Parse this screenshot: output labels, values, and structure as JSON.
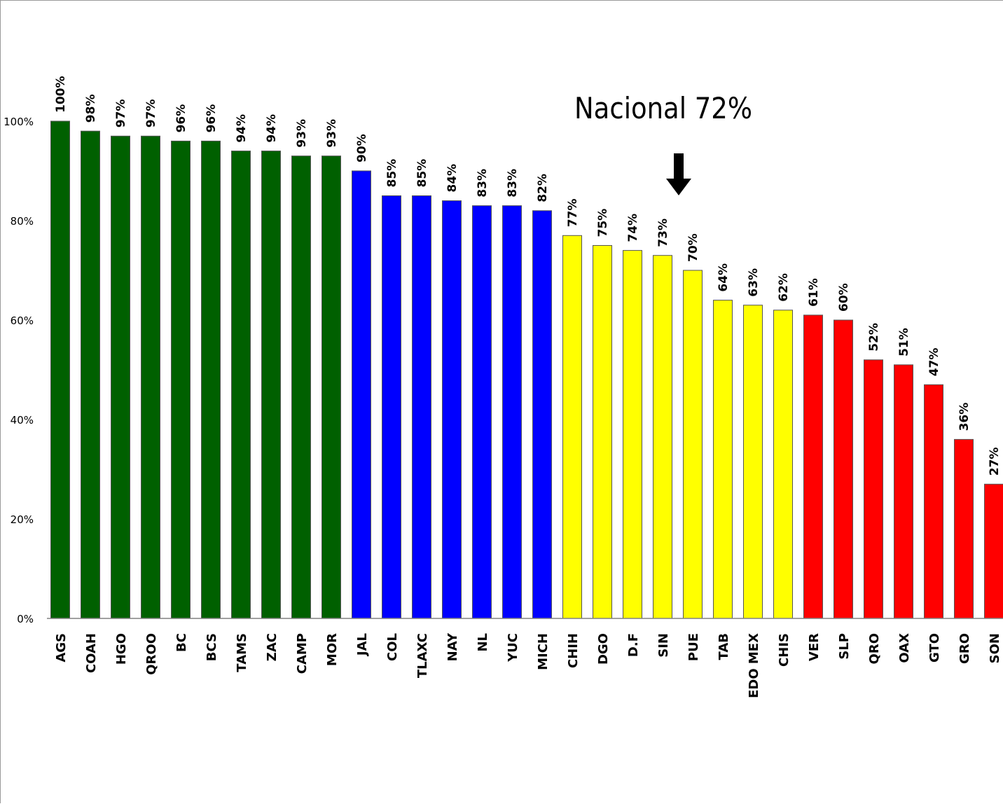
{
  "chart_data": {
    "type": "bar",
    "categories": [
      "AGS",
      "COAH",
      "HGO",
      "QROO",
      "BC",
      "BCS",
      "TAMS",
      "ZAC",
      "CAMP",
      "MOR",
      "JAL",
      "COL",
      "TLAXC",
      "NAY",
      "NL",
      "YUC",
      "MICH",
      "CHIH",
      "DGO",
      "D.F",
      "SIN",
      "PUE",
      "TAB",
      "EDO MEX",
      "CHIS",
      "VER",
      "SLP",
      "QRO",
      "OAX",
      "GTO",
      "GRO",
      "SON"
    ],
    "values": [
      100,
      98,
      97,
      97,
      96,
      96,
      94,
      94,
      93,
      93,
      90,
      85,
      85,
      84,
      83,
      83,
      82,
      77,
      75,
      74,
      73,
      70,
      64,
      63,
      62,
      61,
      60,
      52,
      51,
      47,
      36,
      27
    ],
    "data_labels": [
      "100%",
      "98%",
      "97%",
      "97%",
      "96%",
      "96%",
      "94%",
      "94%",
      "93%",
      "93%",
      "90%",
      "85%",
      "85%",
      "84%",
      "83%",
      "83%",
      "82%",
      "77%",
      "75%",
      "74%",
      "73%",
      "70%",
      "64%",
      "63%",
      "62%",
      "61%",
      "60%",
      "52%",
      "51%",
      "47%",
      "36%",
      "27%"
    ],
    "bar_colors": [
      "#006000",
      "#006000",
      "#006000",
      "#006000",
      "#006000",
      "#006000",
      "#006000",
      "#006000",
      "#006000",
      "#006000",
      "#0000ff",
      "#0000ff",
      "#0000ff",
      "#0000ff",
      "#0000ff",
      "#0000ff",
      "#0000ff",
      "#ffff00",
      "#ffff00",
      "#ffff00",
      "#ffff00",
      "#ffff00",
      "#ffff00",
      "#ffff00",
      "#ffff00",
      "#ff0000",
      "#ff0000",
      "#ff0000",
      "#ff0000",
      "#ff0000",
      "#ff0000",
      "#ff0000"
    ],
    "ylim": [
      0,
      100
    ],
    "yticks": [
      0,
      20,
      40,
      60,
      80,
      100
    ],
    "ytick_labels": [
      "0%",
      "20%",
      "40%",
      "60%",
      "80%",
      "100%"
    ],
    "grid": false,
    "title": "",
    "xlabel": "",
    "ylabel": "",
    "annotation": {
      "text": "Nacional 72%",
      "category": "SIN",
      "arrow": "down"
    }
  }
}
